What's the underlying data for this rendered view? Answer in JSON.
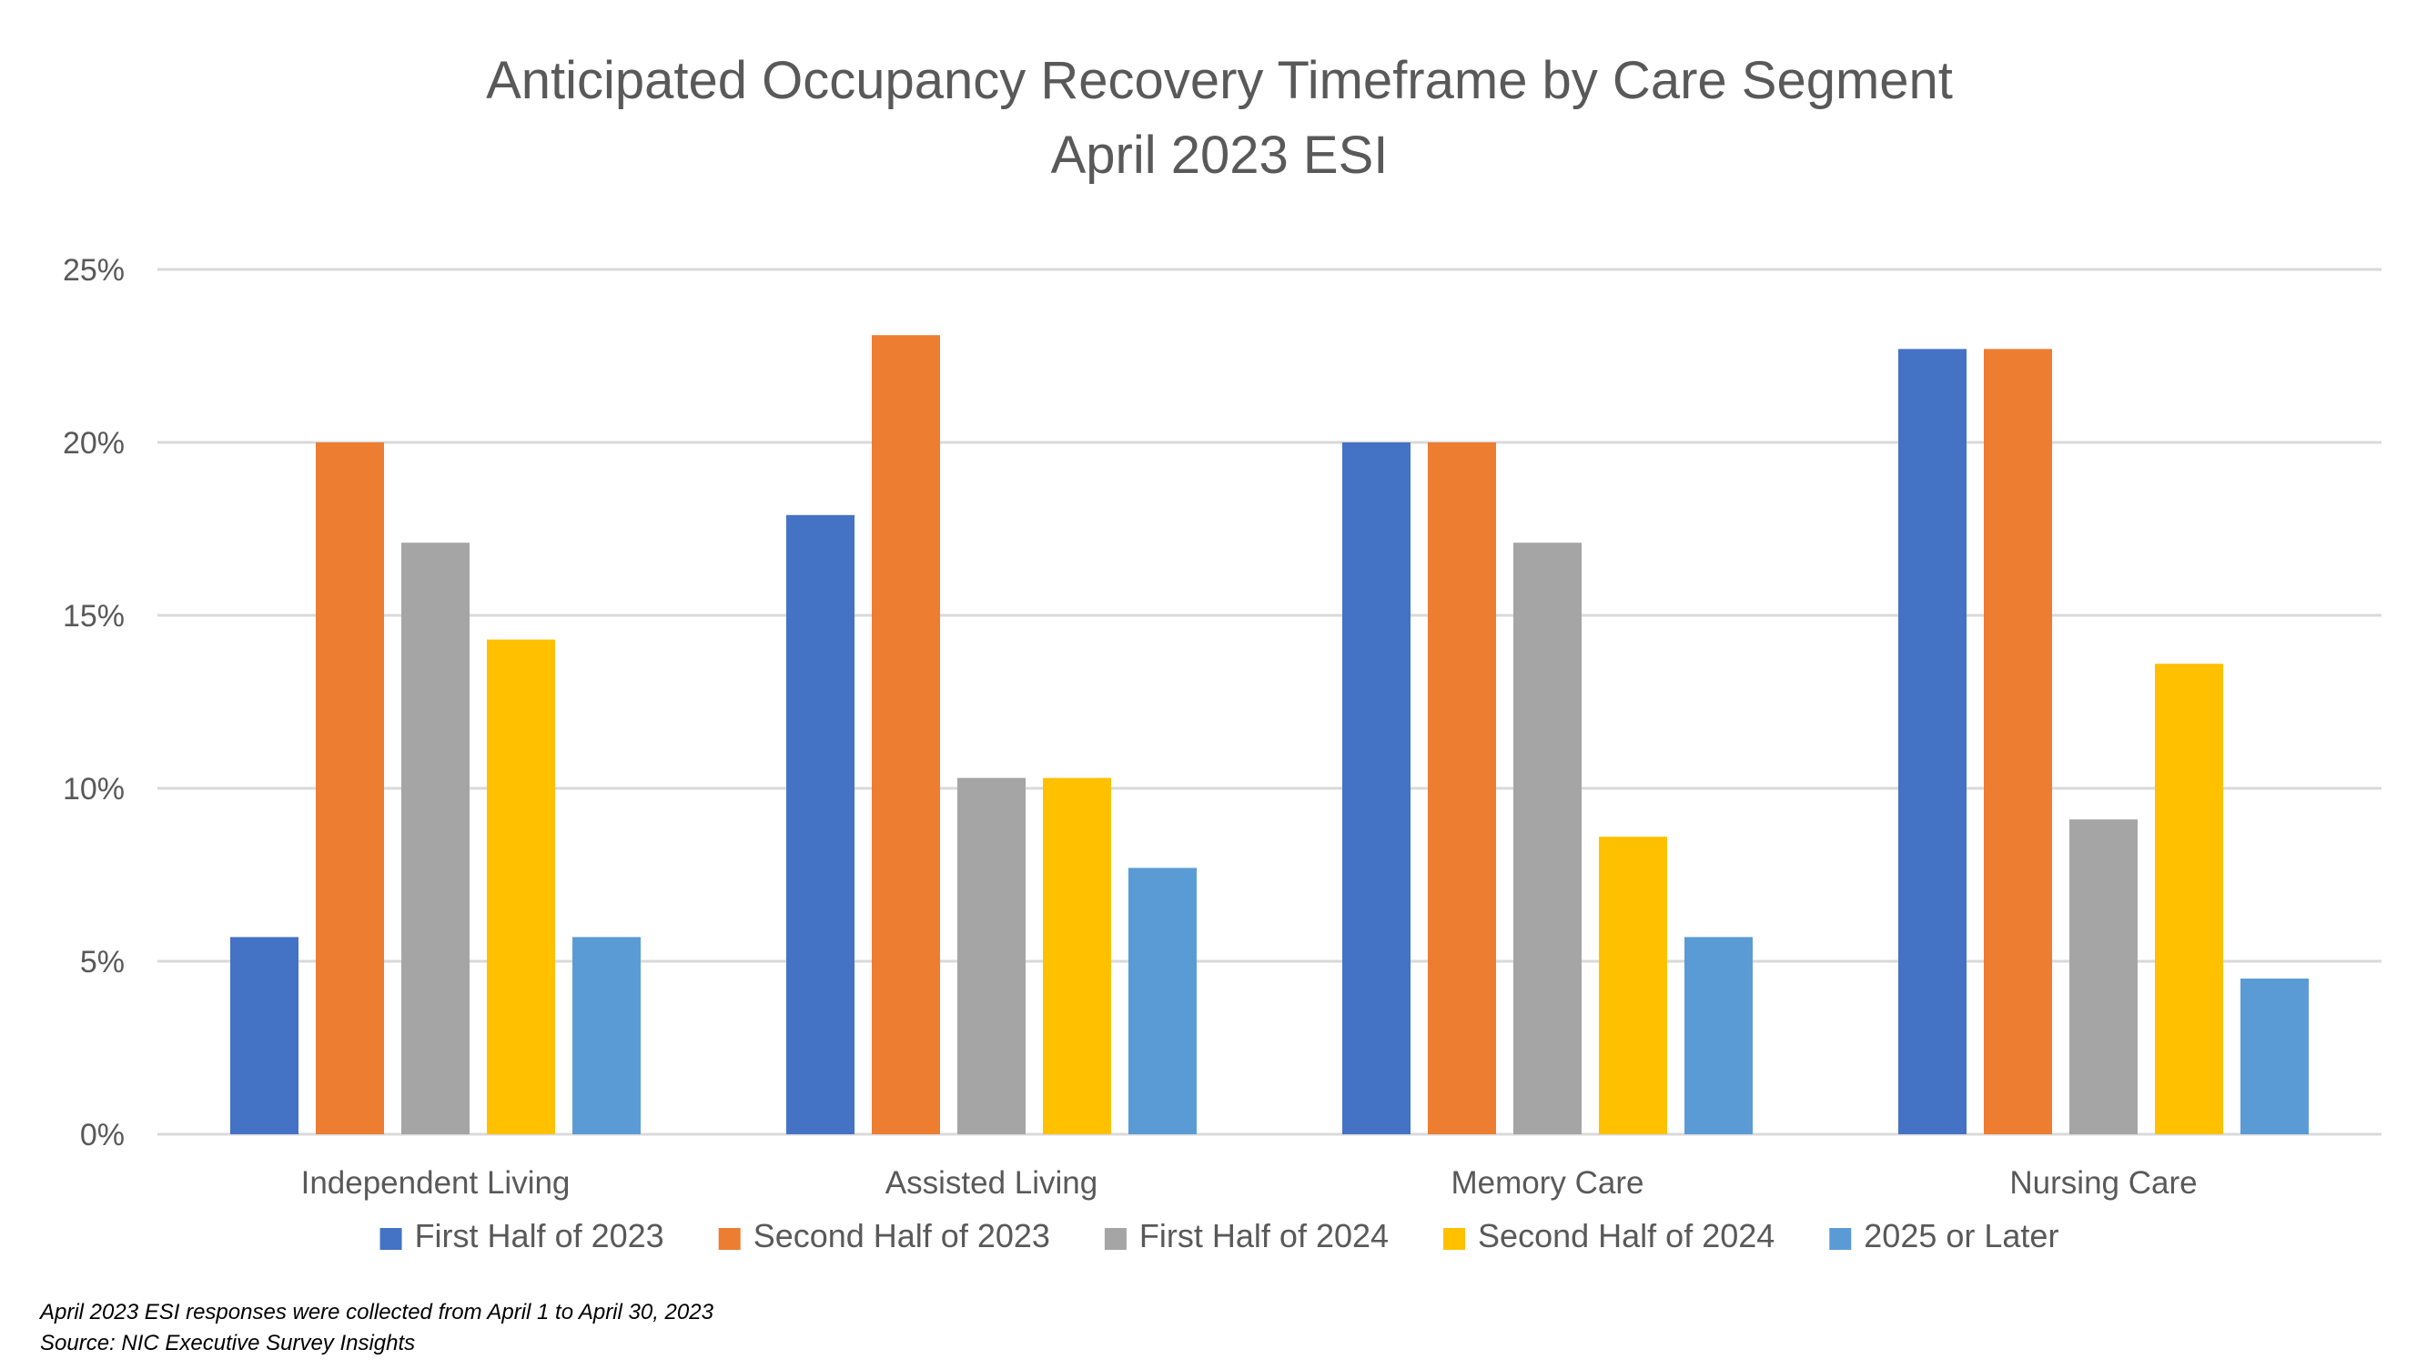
{
  "chart_data": {
    "type": "bar",
    "title": "Anticipated Occupancy Recovery Timeframe by Care Segment",
    "subtitle": "April 2023 ESI",
    "xlabel": "",
    "ylabel": "",
    "ylim": [
      0,
      25
    ],
    "yticks": [
      0,
      5,
      10,
      15,
      20,
      25
    ],
    "ytick_labels": [
      "0%",
      "5%",
      "10%",
      "15%",
      "20%",
      "25%"
    ],
    "grid": true,
    "legend_position": "bottom",
    "categories": [
      "Independent Living",
      "Assisted Living",
      "Memory Care",
      "Nursing Care"
    ],
    "series": [
      {
        "name": "First Half of 2023",
        "color": "#4472C4",
        "values": [
          5.7,
          17.9,
          20.0,
          22.7
        ]
      },
      {
        "name": "Second Half of 2023",
        "color": "#ED7D31",
        "values": [
          20.0,
          23.1,
          20.0,
          22.7
        ]
      },
      {
        "name": "First Half of 2024",
        "color": "#A5A5A5",
        "values": [
          17.1,
          10.3,
          17.1,
          9.1
        ]
      },
      {
        "name": "Second Half of 2024",
        "color": "#FFC000",
        "values": [
          14.3,
          10.3,
          8.6,
          13.6
        ]
      },
      {
        "name": "2025 or Later",
        "color": "#5B9BD5",
        "values": [
          5.7,
          7.7,
          5.7,
          4.5
        ]
      }
    ]
  },
  "footnotes": {
    "line1": "April 2023 ESI responses were collected from April 1 to April 30, 2023",
    "line2": "Source: NIC Executive Survey Insights"
  }
}
